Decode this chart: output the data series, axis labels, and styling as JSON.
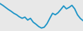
{
  "x": [
    0,
    1,
    2,
    3,
    4,
    5,
    6,
    7,
    8,
    9,
    10,
    11,
    12,
    13,
    14,
    15,
    16,
    17,
    18,
    19,
    20,
    21,
    22,
    23,
    24,
    25,
    26,
    27,
    28,
    29,
    30
  ],
  "y": [
    88,
    82,
    75,
    68,
    62,
    55,
    50,
    43,
    38,
    42,
    32,
    38,
    25,
    18,
    10,
    5,
    8,
    20,
    38,
    55,
    50,
    57,
    68,
    80,
    70,
    75,
    82,
    70,
    50,
    38,
    30
  ],
  "line_color": "#2196c8",
  "linewidth": 1.4,
  "background_color": "#e8e8e8",
  "ylim": [
    -5,
    100
  ],
  "xlim": [
    0,
    30
  ]
}
